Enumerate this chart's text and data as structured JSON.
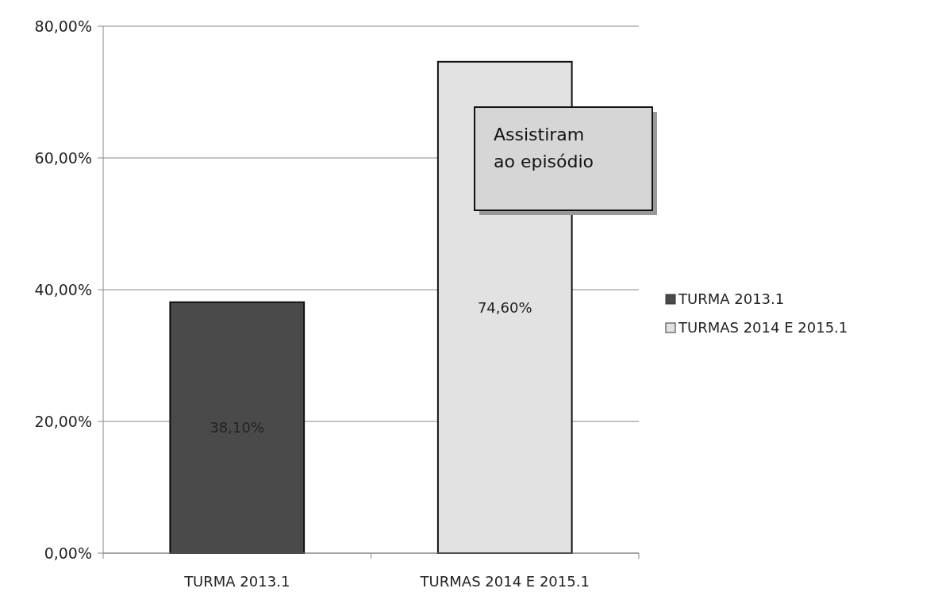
{
  "chart_data": {
    "type": "bar",
    "categories": [
      "TURMA 2013.1",
      "TURMAS 2014 E 2015.1"
    ],
    "series": [
      {
        "name": "TURMA 2013.1",
        "color": "#4a4a4a",
        "values": [
          38.1,
          null
        ],
        "value_labels": [
          "38,10%",
          null
        ]
      },
      {
        "name": "TURMAS 2014 E 2015.1",
        "color": "#e2e2e2",
        "values": [
          null,
          74.6
        ],
        "value_labels": [
          null,
          "74,60%"
        ]
      }
    ],
    "ylim": [
      0,
      80
    ],
    "yticks": [
      {
        "value": 0,
        "label": "0,00%"
      },
      {
        "value": 20,
        "label": "20,00%"
      },
      {
        "value": 40,
        "label": "40,00%"
      },
      {
        "value": 60,
        "label": "60,00%"
      },
      {
        "value": 80,
        "label": "80,00%"
      }
    ],
    "grid": "y",
    "legend": "right",
    "annotations": [
      "Assistiram ao episódio"
    ]
  }
}
